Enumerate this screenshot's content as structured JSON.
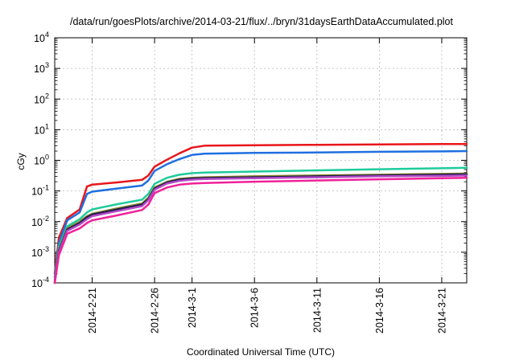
{
  "chart_data": {
    "type": "line",
    "title": "/data/run/goesPlots/archive/2014-03-21/flux/../bryn/31daysEarthDataAccumulated.plot",
    "xlabel": "Coordinated Universal Time (UTC)",
    "ylabel": "cGy",
    "y_scale": "log",
    "ylim": [
      0.0001,
      10000
    ],
    "xlim": [
      "2014-02-18",
      "2014-03-23"
    ],
    "grid": true,
    "legend": "none",
    "y_ticks": [
      {
        "value": 0.0001,
        "base": "10",
        "exp": "-4"
      },
      {
        "value": 0.001,
        "base": "10",
        "exp": "-3"
      },
      {
        "value": 0.01,
        "base": "10",
        "exp": "-2"
      },
      {
        "value": 0.1,
        "base": "10",
        "exp": "-1"
      },
      {
        "value": 1,
        "base": "10",
        "exp": "0"
      },
      {
        "value": 10,
        "base": "10",
        "exp": "1"
      },
      {
        "value": 100,
        "base": "10",
        "exp": "2"
      },
      {
        "value": 1000,
        "base": "10",
        "exp": "3"
      },
      {
        "value": 10000,
        "base": "10",
        "exp": "4"
      }
    ],
    "x_ticks": [
      "2014-2-21",
      "2014-2-26",
      "2014-3-1",
      "2014-3-6",
      "2014-3-11",
      "2014-3-16",
      "2014-3-21"
    ],
    "x_tick_dates": [
      "2014-02-21",
      "2014-02-26",
      "2014-03-01",
      "2014-03-06",
      "2014-03-11",
      "2014-03-16",
      "2014-03-21"
    ],
    "series": [
      {
        "color": "#e8151b",
        "x": [
          "2014-02-18",
          "2014-02-18T08:00",
          "2014-02-19",
          "2014-02-20",
          "2014-02-20T14:00",
          "2014-02-21",
          "2014-02-23",
          "2014-02-25",
          "2014-02-25T12:00",
          "2014-02-26",
          "2014-02-27",
          "2014-02-28",
          "2014-03-01",
          "2014-03-02",
          "2014-03-06",
          "2014-03-11",
          "2014-03-16",
          "2014-03-21",
          "2014-03-23"
        ],
        "y": [
          0.0002,
          0.003,
          0.013,
          0.025,
          0.14,
          0.16,
          0.19,
          0.23,
          0.32,
          0.62,
          1.05,
          1.7,
          2.6,
          3.0,
          3.1,
          3.2,
          3.3,
          3.4,
          3.4
        ]
      },
      {
        "color": "#1f6fe0",
        "x": [
          "2014-02-18",
          "2014-02-18T08:00",
          "2014-02-19",
          "2014-02-20",
          "2014-02-20T14:00",
          "2014-02-21",
          "2014-02-23",
          "2014-02-25",
          "2014-02-25T12:00",
          "2014-02-26",
          "2014-02-27",
          "2014-02-28",
          "2014-03-01",
          "2014-03-02",
          "2014-03-06",
          "2014-03-11",
          "2014-03-16",
          "2014-03-21",
          "2014-03-23"
        ],
        "y": [
          0.00015,
          0.002,
          0.011,
          0.02,
          0.08,
          0.095,
          0.12,
          0.15,
          0.22,
          0.45,
          0.75,
          1.1,
          1.5,
          1.65,
          1.75,
          1.8,
          1.9,
          1.95,
          2.0
        ]
      },
      {
        "color": "#1ecb9c",
        "x": [
          "2014-02-18",
          "2014-02-18T08:00",
          "2014-02-19",
          "2014-02-20",
          "2014-02-20T14:00",
          "2014-02-21",
          "2014-02-23",
          "2014-02-25",
          "2014-02-25T12:00",
          "2014-02-26",
          "2014-02-27",
          "2014-02-28",
          "2014-03-01",
          "2014-03-02",
          "2014-03-06",
          "2014-03-11",
          "2014-03-16",
          "2014-03-21",
          "2014-03-23"
        ],
        "y": [
          0.00012,
          0.0015,
          0.007,
          0.012,
          0.02,
          0.025,
          0.037,
          0.052,
          0.08,
          0.17,
          0.27,
          0.34,
          0.38,
          0.4,
          0.43,
          0.47,
          0.51,
          0.55,
          0.57
        ]
      },
      {
        "color": "#8a8a2a",
        "x": [
          "2014-02-18",
          "2014-02-18T08:00",
          "2014-02-19",
          "2014-02-20",
          "2014-02-20T14:00",
          "2014-02-21",
          "2014-02-23",
          "2014-02-25",
          "2014-02-25T12:00",
          "2014-02-26",
          "2014-02-27",
          "2014-02-28",
          "2014-03-01",
          "2014-03-02",
          "2014-03-06",
          "2014-03-11",
          "2014-03-16",
          "2014-03-21",
          "2014-03-23"
        ],
        "y": [
          0.0001,
          0.0012,
          0.006,
          0.01,
          0.015,
          0.018,
          0.027,
          0.039,
          0.06,
          0.13,
          0.2,
          0.25,
          0.27,
          0.28,
          0.3,
          0.32,
          0.34,
          0.36,
          0.37
        ]
      },
      {
        "color": "#241c4e",
        "x": [
          "2014-02-18",
          "2014-02-18T08:00",
          "2014-02-19",
          "2014-02-20",
          "2014-02-20T14:00",
          "2014-02-21",
          "2014-02-23",
          "2014-02-25",
          "2014-02-25T12:00",
          "2014-02-26",
          "2014-02-27",
          "2014-02-28",
          "2014-03-01",
          "2014-03-02",
          "2014-03-06",
          "2014-03-11",
          "2014-03-16",
          "2014-03-21",
          "2014-03-23"
        ],
        "y": [
          0.0001,
          0.0011,
          0.0055,
          0.009,
          0.014,
          0.017,
          0.025,
          0.036,
          0.055,
          0.12,
          0.19,
          0.235,
          0.255,
          0.265,
          0.28,
          0.3,
          0.32,
          0.34,
          0.35
        ]
      },
      {
        "color": "#b24ac8",
        "x": [
          "2014-02-18",
          "2014-02-18T08:00",
          "2014-02-19",
          "2014-02-20",
          "2014-02-20T14:00",
          "2014-02-21",
          "2014-02-23",
          "2014-02-25",
          "2014-02-25T12:00",
          "2014-02-26",
          "2014-02-27",
          "2014-02-28",
          "2014-03-01",
          "2014-03-02",
          "2014-03-06",
          "2014-03-11",
          "2014-03-16",
          "2014-03-21",
          "2014-03-23"
        ],
        "y": [
          0.0001,
          0.001,
          0.005,
          0.008,
          0.012,
          0.015,
          0.022,
          0.032,
          0.05,
          0.11,
          0.175,
          0.215,
          0.235,
          0.245,
          0.26,
          0.28,
          0.3,
          0.31,
          0.32
        ]
      },
      {
        "color": "#f0219a",
        "x": [
          "2014-02-18",
          "2014-02-18T08:00",
          "2014-02-19",
          "2014-02-20",
          "2014-02-20T14:00",
          "2014-02-21",
          "2014-02-23",
          "2014-02-25",
          "2014-02-25T12:00",
          "2014-02-26",
          "2014-02-27",
          "2014-02-28",
          "2014-03-01",
          "2014-03-02",
          "2014-03-06",
          "2014-03-11",
          "2014-03-16",
          "2014-03-21",
          "2014-03-23"
        ],
        "y": [
          0.0001,
          0.0008,
          0.004,
          0.006,
          0.009,
          0.011,
          0.016,
          0.024,
          0.036,
          0.085,
          0.13,
          0.16,
          0.175,
          0.182,
          0.2,
          0.22,
          0.24,
          0.26,
          0.27
        ]
      }
    ]
  }
}
